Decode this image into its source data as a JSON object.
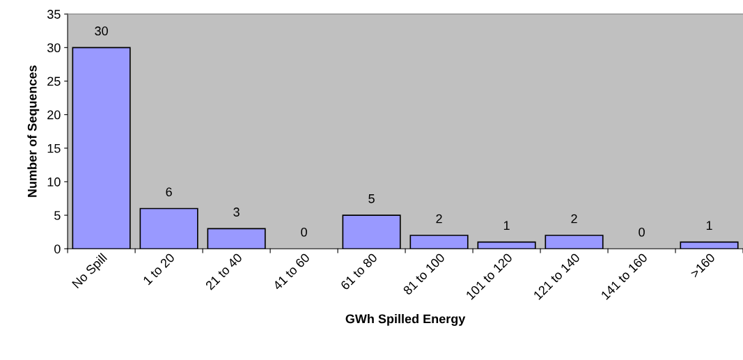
{
  "chart_data": {
    "type": "bar",
    "xlabel": "GWh Spilled Energy",
    "ylabel": "Number of Sequences",
    "categories": [
      "No Spill",
      "1 to 20",
      "21 to 40",
      "41 to 60",
      "61 to 80",
      "81 to 100",
      "101 to 120",
      "121 to 140",
      "141 to 160",
      ">160"
    ],
    "values": [
      30,
      6,
      3,
      0,
      5,
      2,
      1,
      2,
      0,
      1
    ],
    "color": "#9999ff",
    "ylim": [
      0,
      35
    ],
    "yticks": [
      0,
      5,
      10,
      15,
      20,
      25,
      30,
      35
    ],
    "data_labels": true,
    "grid": false,
    "legend": false
  }
}
